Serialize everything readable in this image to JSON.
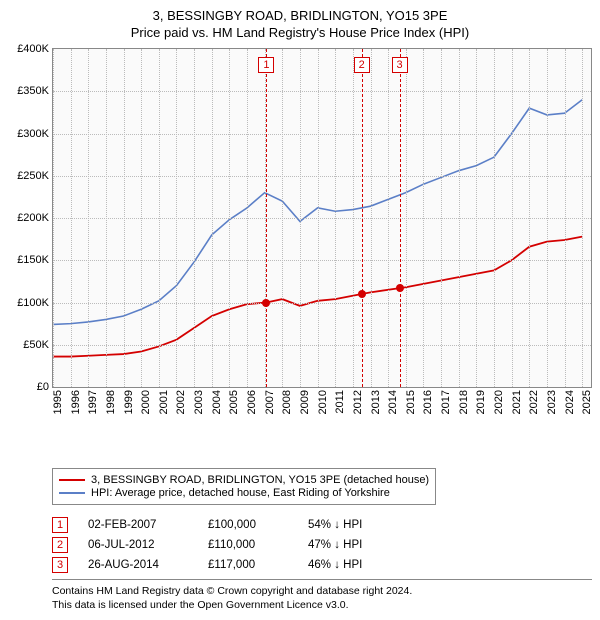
{
  "title": "3, BESSINGBY ROAD, BRIDLINGTON, YO15 3PE",
  "subtitle": "Price paid vs. HM Land Registry's House Price Index (HPI)",
  "chart": {
    "type": "line",
    "background_color": "#fafafa",
    "grid_color": "#bbbbbb",
    "border_color": "#888888",
    "x": {
      "min": 1995,
      "max": 2025.5,
      "ticks": [
        1995,
        1996,
        1997,
        1998,
        1999,
        2000,
        2001,
        2002,
        2003,
        2004,
        2005,
        2006,
        2007,
        2008,
        2009,
        2010,
        2011,
        2012,
        2013,
        2014,
        2015,
        2016,
        2017,
        2018,
        2019,
        2020,
        2021,
        2022,
        2023,
        2024,
        2025
      ]
    },
    "y": {
      "min": 0,
      "max": 400000,
      "step": 50000,
      "tick_labels": [
        "£0",
        "£50K",
        "£100K",
        "£150K",
        "£200K",
        "£250K",
        "£300K",
        "£350K",
        "£400K"
      ]
    },
    "series": [
      {
        "id": "property",
        "label": "3, BESSINGBY ROAD, BRIDLINGTON, YO15 3PE (detached house)",
        "color": "#d40000",
        "width": 1.8,
        "points": [
          [
            1995,
            36000
          ],
          [
            1996,
            36000
          ],
          [
            1997,
            37000
          ],
          [
            1998,
            38000
          ],
          [
            1999,
            39000
          ],
          [
            2000,
            42000
          ],
          [
            2001,
            48000
          ],
          [
            2002,
            56000
          ],
          [
            2003,
            70000
          ],
          [
            2004,
            84000
          ],
          [
            2005,
            92000
          ],
          [
            2006,
            98000
          ],
          [
            2007.1,
            100000
          ],
          [
            2008,
            104000
          ],
          [
            2009,
            96000
          ],
          [
            2010,
            102000
          ],
          [
            2011,
            104000
          ],
          [
            2012.5,
            110000
          ],
          [
            2013,
            112000
          ],
          [
            2014.65,
            117000
          ],
          [
            2015,
            118000
          ],
          [
            2016,
            122000
          ],
          [
            2017,
            126000
          ],
          [
            2018,
            130000
          ],
          [
            2019,
            134000
          ],
          [
            2020,
            138000
          ],
          [
            2021,
            150000
          ],
          [
            2022,
            166000
          ],
          [
            2023,
            172000
          ],
          [
            2024,
            174000
          ],
          [
            2025,
            178000
          ]
        ]
      },
      {
        "id": "hpi",
        "label": "HPI: Average price, detached house, East Riding of Yorkshire",
        "color": "#5b7fc7",
        "width": 1.6,
        "points": [
          [
            1995,
            74000
          ],
          [
            1996,
            75000
          ],
          [
            1997,
            77000
          ],
          [
            1998,
            80000
          ],
          [
            1999,
            84000
          ],
          [
            2000,
            92000
          ],
          [
            2001,
            102000
          ],
          [
            2002,
            120000
          ],
          [
            2003,
            148000
          ],
          [
            2004,
            180000
          ],
          [
            2005,
            198000
          ],
          [
            2006,
            212000
          ],
          [
            2007,
            230000
          ],
          [
            2008,
            220000
          ],
          [
            2009,
            196000
          ],
          [
            2010,
            212000
          ],
          [
            2011,
            208000
          ],
          [
            2012,
            210000
          ],
          [
            2013,
            214000
          ],
          [
            2014,
            222000
          ],
          [
            2015,
            230000
          ],
          [
            2016,
            240000
          ],
          [
            2017,
            248000
          ],
          [
            2018,
            256000
          ],
          [
            2019,
            262000
          ],
          [
            2020,
            272000
          ],
          [
            2021,
            300000
          ],
          [
            2022,
            330000
          ],
          [
            2023,
            322000
          ],
          [
            2024,
            324000
          ],
          [
            2025,
            340000
          ]
        ]
      }
    ],
    "markers": [
      {
        "n": "1",
        "x": 2007.1,
        "y": 100000,
        "color": "#d40000"
      },
      {
        "n": "2",
        "x": 2012.5,
        "y": 110000,
        "color": "#d40000"
      },
      {
        "n": "3",
        "x": 2014.65,
        "y": 117000,
        "color": "#d40000"
      }
    ]
  },
  "legend": {
    "items": [
      {
        "color": "#d40000",
        "label": "3, BESSINGBY ROAD, BRIDLINGTON, YO15 3PE (detached house)"
      },
      {
        "color": "#5b7fc7",
        "label": "HPI: Average price, detached house, East Riding of Yorkshire"
      }
    ]
  },
  "sales": [
    {
      "n": "1",
      "date": "02-FEB-2007",
      "price": "£100,000",
      "hpi": "54% ↓ HPI",
      "color": "#d40000"
    },
    {
      "n": "2",
      "date": "06-JUL-2012",
      "price": "£110,000",
      "hpi": "47% ↓ HPI",
      "color": "#d40000"
    },
    {
      "n": "3",
      "date": "26-AUG-2014",
      "price": "£117,000",
      "hpi": "46% ↓ HPI",
      "color": "#d40000"
    }
  ],
  "footer": {
    "line1": "Contains HM Land Registry data © Crown copyright and database right 2024.",
    "line2": "This data is licensed under the Open Government Licence v3.0."
  }
}
